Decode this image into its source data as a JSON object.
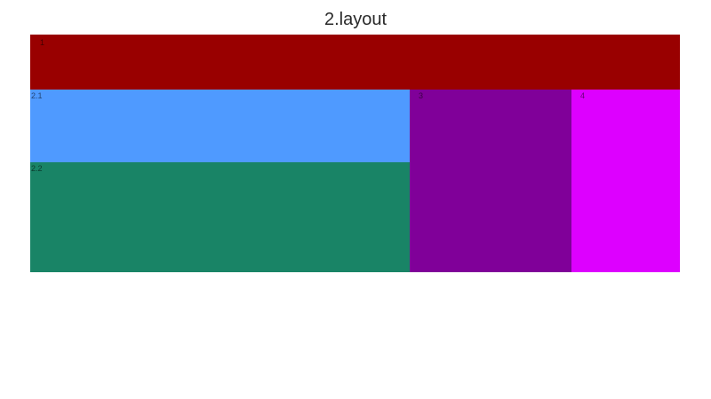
{
  "title": "2.layout",
  "regions": [
    {
      "label": "1",
      "color": "#990000"
    },
    {
      "label": "2.1",
      "color": "#4f9aff"
    },
    {
      "label": "2.2",
      "color": "#198466"
    },
    {
      "label": "3",
      "color": "#800099"
    },
    {
      "label": "4",
      "color": "#dd00ff"
    }
  ]
}
